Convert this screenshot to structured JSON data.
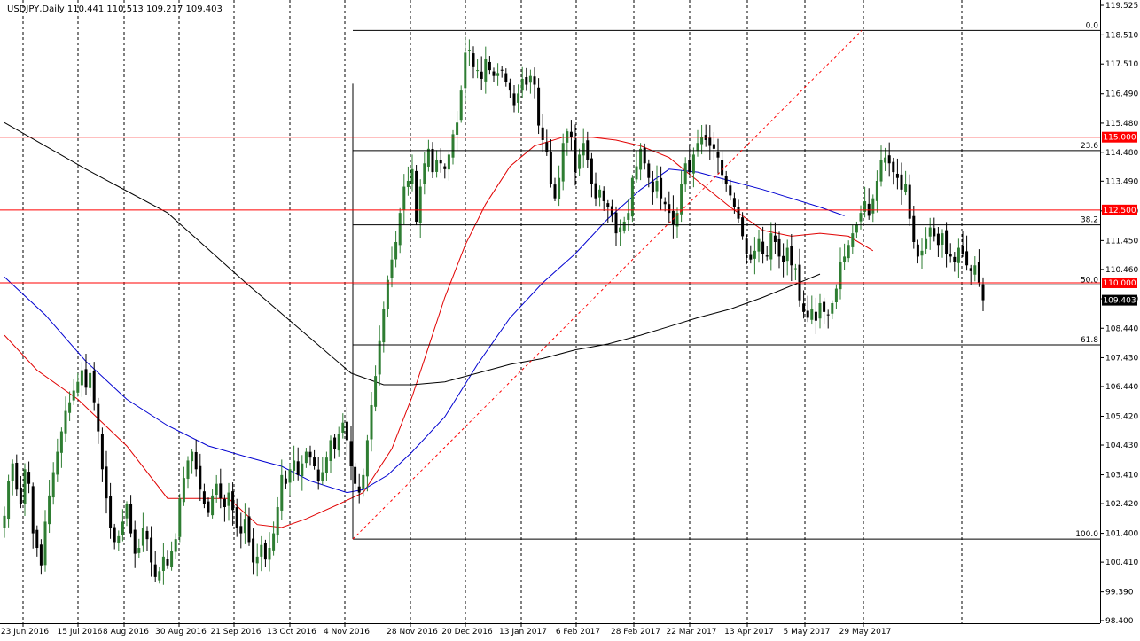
{
  "chart_data": {
    "type": "candlestick",
    "header": {
      "symbol": "USDJPY,Daily",
      "open": "110.441",
      "high": "110.513",
      "low": "109.217",
      "close": "109.403"
    },
    "ylim": [
      98.405,
      119.525
    ],
    "y_ticks": [
      "119.525",
      "118.510",
      "117.510",
      "116.490",
      "115.480",
      "114.480",
      "113.490",
      "112.470",
      "111.450",
      "110.460",
      "109.450",
      "108.440",
      "107.430",
      "106.440",
      "105.420",
      "104.430",
      "103.410",
      "102.420",
      "101.400",
      "100.410",
      "99.390",
      "98.400"
    ],
    "y_tick_values": [
      119.525,
      118.51,
      117.51,
      116.49,
      115.48,
      114.48,
      113.49,
      112.47,
      111.45,
      110.46,
      109.45,
      108.44,
      107.43,
      106.44,
      105.42,
      104.43,
      103.41,
      102.42,
      101.4,
      100.41,
      99.39,
      98.405
    ],
    "x_labels": [
      "23 Jun 2016",
      "15 Jul 2016",
      "8 Aug 2016",
      "30 Aug 2016",
      "21 Sep 2016",
      "13 Oct 2016",
      "4 Nov 2016",
      "28 Nov 2016",
      "20 Dec 2016",
      "13 Jan 2017",
      "6 Feb 2017",
      "28 Feb 2017",
      "22 Mar 2017",
      "13 Apr 2017",
      "5 May 2017",
      "29 May 2017"
    ],
    "horizontal_levels": [
      {
        "label": "115.000",
        "value": 115.0
      },
      {
        "label": "112.500",
        "value": 112.5
      },
      {
        "label": "110.000",
        "value": 110.0
      }
    ],
    "last_price_label": "109.403",
    "last_price": 109.403,
    "fibonacci": {
      "high": 118.66,
      "low": 101.2,
      "levels": [
        {
          "label": "0.0",
          "ratio": 0.0
        },
        {
          "label": "23.6",
          "ratio": 0.236
        },
        {
          "label": "38.2",
          "ratio": 0.382
        },
        {
          "label": "50.0",
          "ratio": 0.5
        },
        {
          "label": "61.8",
          "ratio": 0.618
        },
        {
          "label": "100.0",
          "ratio": 1.0
        }
      ]
    },
    "grid": true,
    "colors": {
      "bull": "#2e7d32",
      "bear": "#000000",
      "ma_fast": "#e00000",
      "ma_mid": "#0000d0",
      "ma_slow": "#000000",
      "level": "#ff0000",
      "level_tag_bg": "#ff0000",
      "last_tag_bg": "#000000",
      "fib": "#000000",
      "fib_trend": "#ff0000"
    },
    "series": [
      {
        "role": "price",
        "values": [
          102.0,
          103.2,
          103.8,
          102.9,
          102.4,
          103.6,
          103.1,
          101.4,
          100.9,
          100.3,
          101.8,
          102.7,
          103.5,
          104.2,
          104.9,
          105.6,
          105.9,
          106.3,
          106.6,
          107.0,
          106.4,
          106.9,
          105.9,
          104.9,
          103.6,
          102.6,
          101.6,
          101.1,
          101.3,
          101.8,
          102.4,
          101.4,
          100.7,
          100.9,
          101.6,
          101.2,
          100.4,
          99.9,
          100.1,
          100.6,
          100.3,
          100.8,
          101.2,
          102.6,
          103.3,
          103.9,
          104.2,
          103.6,
          102.9,
          102.4,
          102.1,
          102.7,
          103.1,
          102.6,
          102.3,
          102.8,
          102.2,
          101.6,
          101.4,
          101.9,
          101.1,
          100.4,
          100.6,
          101.0,
          100.5,
          100.9,
          101.4,
          102.3,
          103.4,
          103.1,
          103.6,
          103.9,
          103.4,
          103.8,
          104.2,
          104.0,
          103.7,
          103.2,
          103.5,
          104.0,
          104.6,
          104.3,
          104.8,
          105.2,
          104.6,
          103.7,
          103.1,
          102.8,
          103.4,
          104.6,
          105.8,
          106.8,
          108.0,
          109.1,
          110.1,
          110.8,
          111.4,
          112.4,
          113.3,
          113.5,
          113.9,
          112.1,
          113.3,
          114.1,
          114.6,
          113.8,
          114.2,
          114.1,
          113.9,
          114.4,
          115.1,
          115.5,
          116.6,
          117.9,
          118.0,
          117.4,
          117.3,
          117.0,
          117.7,
          117.3,
          117.1,
          117.2,
          117.3,
          116.9,
          116.6,
          116.1,
          116.5,
          117.0,
          116.8,
          117.1,
          116.8,
          115.4,
          114.9,
          114.5,
          113.4,
          112.9,
          113.6,
          114.8,
          115.2,
          115.0,
          113.8,
          114.4,
          114.8,
          114.2,
          113.4,
          112.9,
          113.2,
          112.8,
          112.6,
          112.3,
          111.7,
          111.9,
          112.1,
          112.4,
          113.6,
          114.0,
          114.6,
          114.1,
          113.6,
          113.1,
          113.5,
          112.9,
          112.7,
          112.4,
          112.0,
          112.4,
          113.4,
          114.1,
          113.8,
          114.4,
          114.8,
          115.0,
          114.9,
          114.7,
          114.6,
          114.3,
          113.7,
          113.4,
          113.0,
          112.6,
          112.2,
          111.6,
          111.0,
          110.8,
          111.1,
          111.5,
          111.0,
          110.9,
          111.7,
          111.4,
          110.9,
          110.7,
          111.2,
          110.6,
          110.5,
          109.4,
          109.0,
          108.8,
          109.1,
          108.7,
          109.3,
          109.0,
          108.9,
          109.3,
          109.8,
          110.7,
          110.9,
          111.3,
          111.7,
          112.0,
          112.4,
          112.8,
          112.3,
          112.9,
          113.5,
          114.2,
          114.3,
          114.1,
          113.8,
          113.6,
          113.2,
          113.4,
          112.2,
          111.4,
          110.9,
          111.1,
          111.5,
          111.9,
          111.6,
          111.3,
          111.7,
          111.0,
          110.9,
          110.7,
          111.2,
          111.0,
          110.6,
          110.4,
          110.6,
          110.0,
          109.403
        ]
      },
      {
        "role": "ma_fast",
        "points": [
          [
            0,
            108.2
          ],
          [
            8,
            107.0
          ],
          [
            18,
            106.0
          ],
          [
            30,
            104.4
          ],
          [
            40,
            102.6
          ],
          [
            48,
            102.6
          ],
          [
            55,
            102.6
          ],
          [
            62,
            101.7
          ],
          [
            68,
            101.6
          ],
          [
            74,
            101.9
          ],
          [
            82,
            102.4
          ],
          [
            88,
            102.8
          ],
          [
            95,
            104.3
          ],
          [
            100,
            106.1
          ],
          [
            104,
            107.8
          ],
          [
            108,
            109.5
          ],
          [
            113,
            111.3
          ],
          [
            118,
            112.7
          ],
          [
            124,
            114.0
          ],
          [
            130,
            114.7
          ],
          [
            137,
            115.0
          ],
          [
            144,
            115.0
          ],
          [
            150,
            114.9
          ],
          [
            156,
            114.7
          ],
          [
            163,
            114.3
          ],
          [
            170,
            113.5
          ],
          [
            178,
            112.6
          ],
          [
            186,
            111.8
          ],
          [
            193,
            111.6
          ],
          [
            200,
            111.7
          ],
          [
            207,
            111.6
          ],
          [
            213,
            111.1
          ]
        ]
      },
      {
        "role": "ma_mid",
        "points": [
          [
            0,
            110.2
          ],
          [
            10,
            108.9
          ],
          [
            20,
            107.3
          ],
          [
            30,
            106.0
          ],
          [
            40,
            105.1
          ],
          [
            50,
            104.4
          ],
          [
            60,
            104.0
          ],
          [
            68,
            103.7
          ],
          [
            75,
            103.2
          ],
          [
            84,
            102.8
          ],
          [
            88,
            102.9
          ],
          [
            94,
            103.4
          ],
          [
            100,
            104.2
          ],
          [
            108,
            105.4
          ],
          [
            116,
            107.2
          ],
          [
            124,
            108.8
          ],
          [
            132,
            110.0
          ],
          [
            140,
            111.0
          ],
          [
            148,
            112.2
          ],
          [
            156,
            113.2
          ],
          [
            163,
            113.9
          ],
          [
            170,
            113.8
          ],
          [
            178,
            113.5
          ],
          [
            186,
            113.2
          ],
          [
            193,
            112.9
          ],
          [
            200,
            112.6
          ],
          [
            206,
            112.3
          ]
        ]
      },
      {
        "role": "ma_slow",
        "points": [
          [
            0,
            115.5
          ],
          [
            20,
            113.9
          ],
          [
            40,
            112.4
          ],
          [
            60,
            109.9
          ],
          [
            75,
            108.1
          ],
          [
            85,
            106.9
          ],
          [
            93,
            106.5
          ],
          [
            100,
            106.5
          ],
          [
            108,
            106.6
          ],
          [
            116,
            106.9
          ],
          [
            124,
            107.2
          ],
          [
            132,
            107.4
          ],
          [
            140,
            107.7
          ],
          [
            148,
            107.9
          ],
          [
            156,
            108.2
          ],
          [
            163,
            108.5
          ],
          [
            170,
            108.8
          ],
          [
            178,
            109.1
          ],
          [
            186,
            109.5
          ],
          [
            193,
            109.9
          ],
          [
            200,
            110.3
          ]
        ]
      }
    ]
  }
}
